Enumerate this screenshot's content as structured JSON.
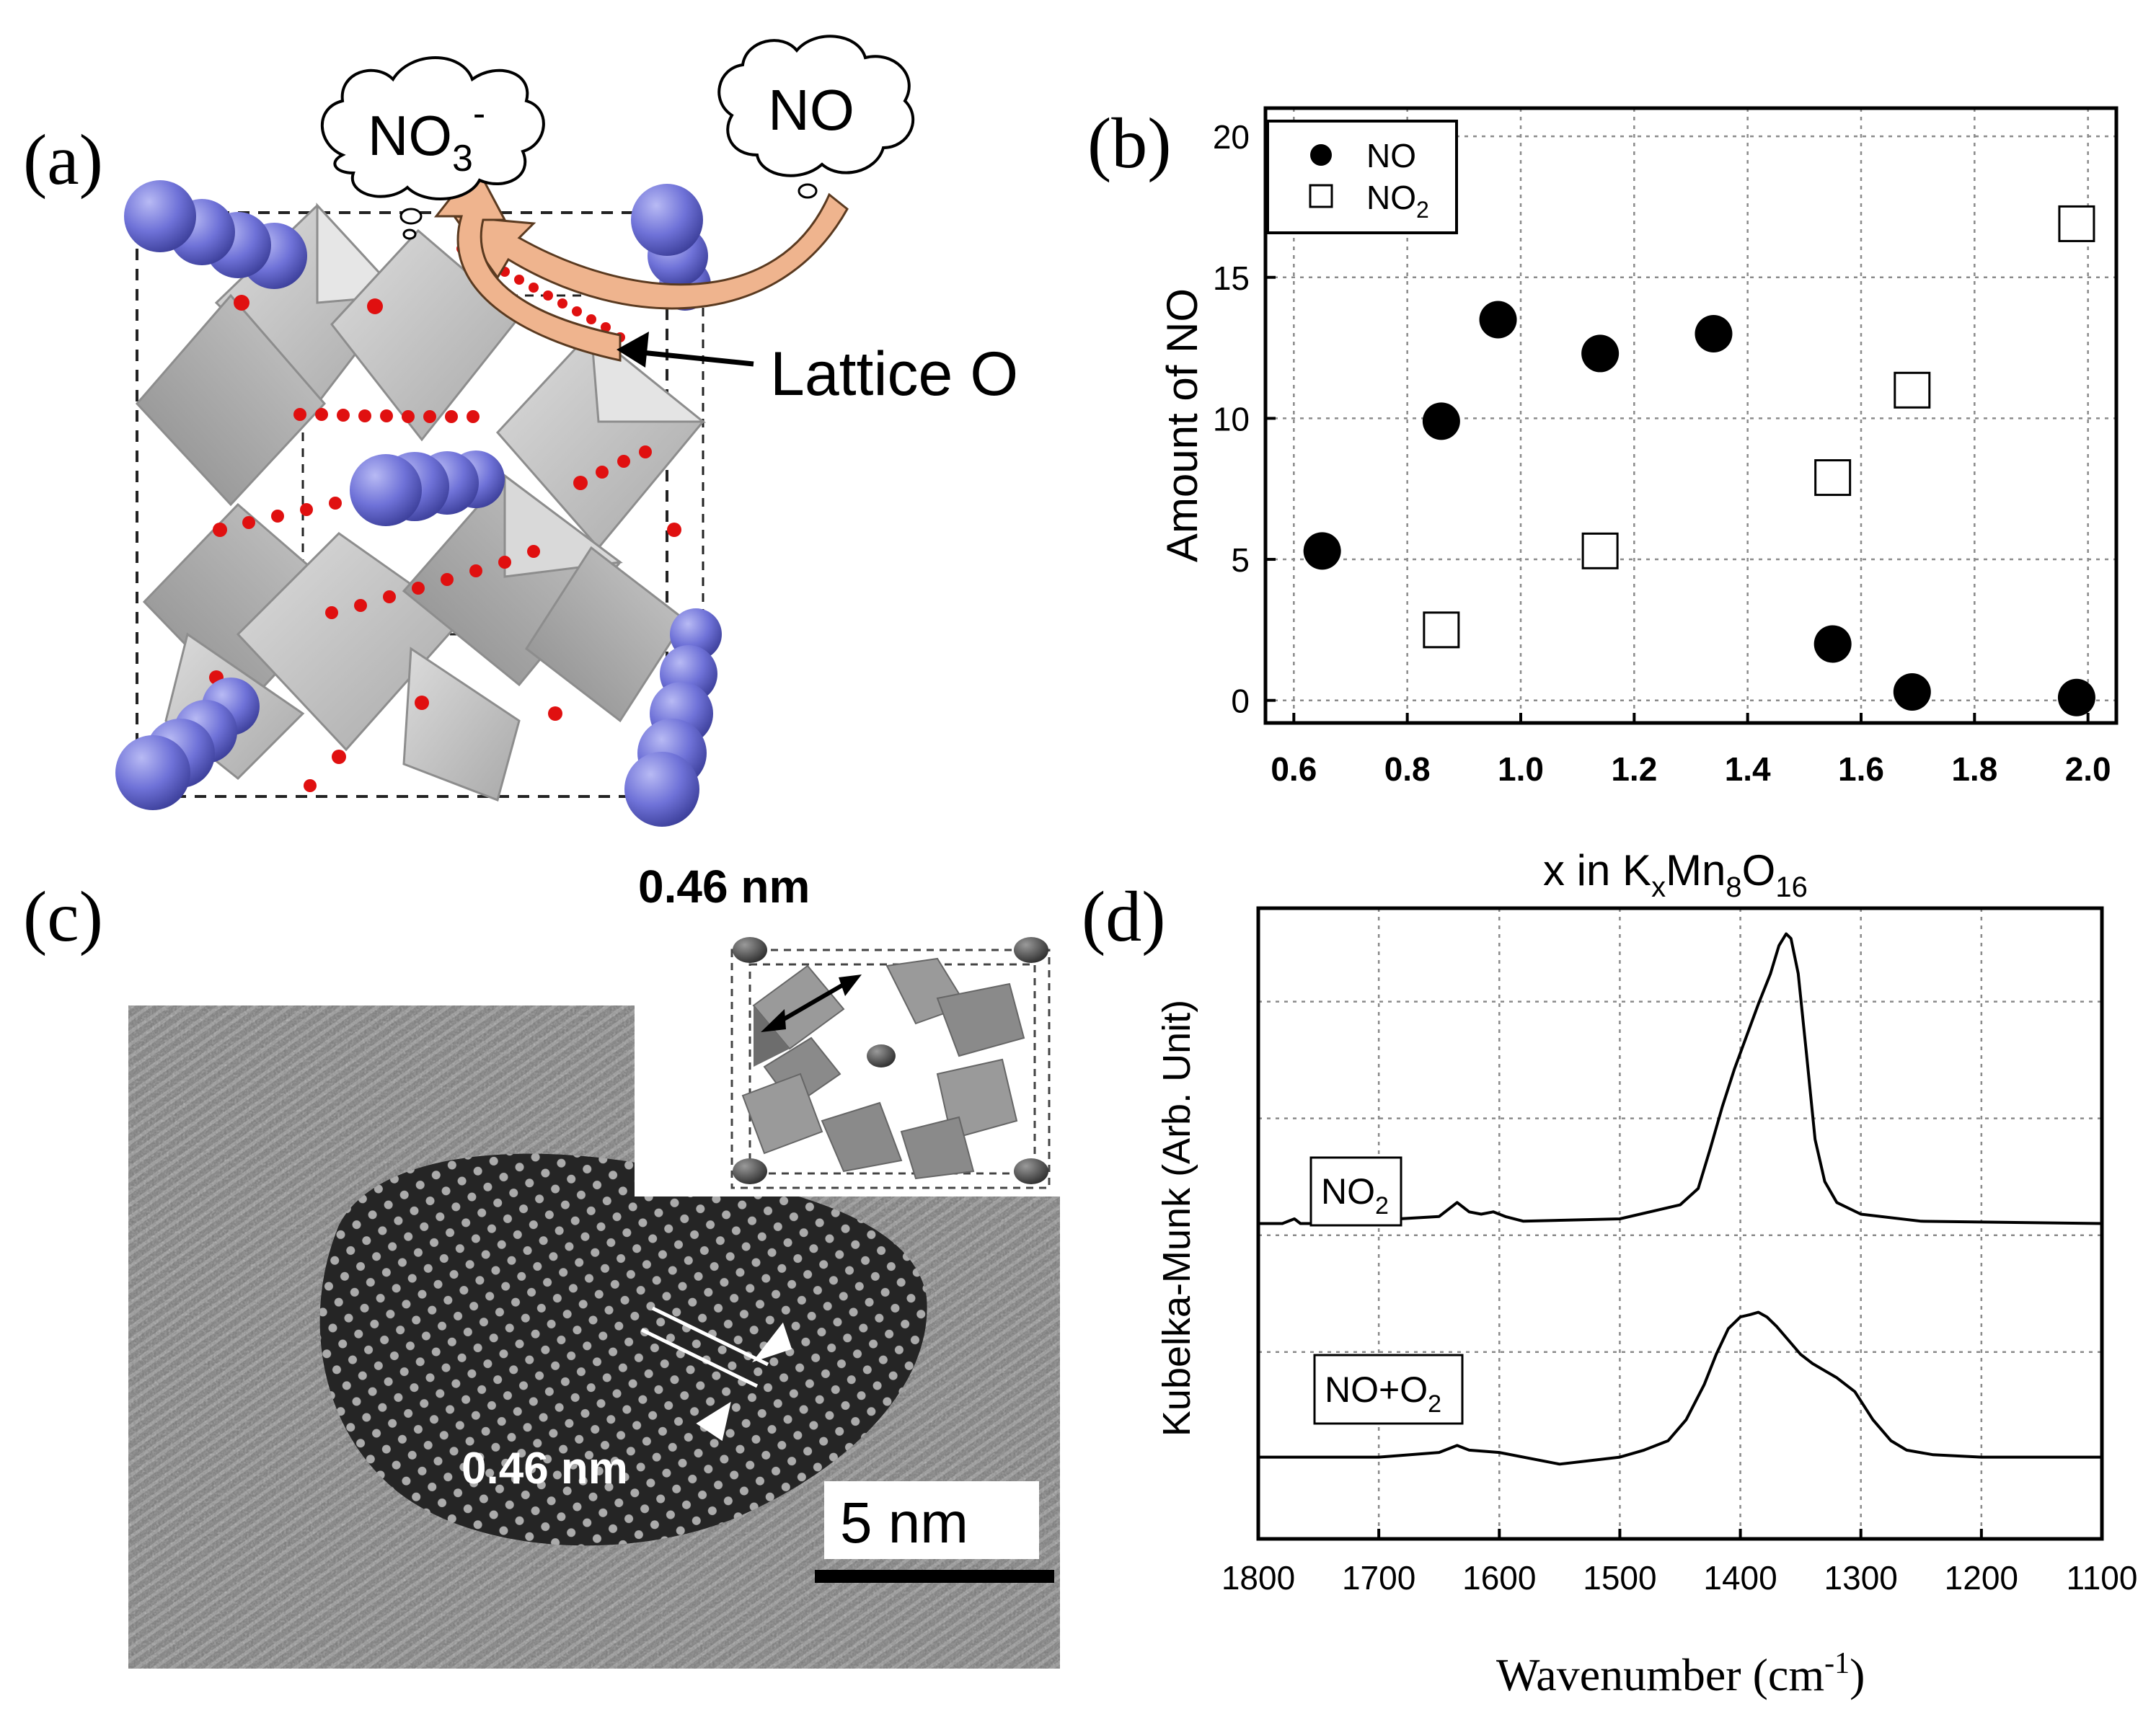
{
  "panels": {
    "a": "(a)",
    "b": "(b)",
    "c": "(c)",
    "d": "(d)"
  },
  "panel_a": {
    "cloud_left": "NO",
    "cloud_left_sub": "3",
    "cloud_left_sup": "-",
    "cloud_right": "NO",
    "annotation": "Lattice O",
    "colors": {
      "tunnel_atom": "#6f72d8",
      "oxygen": "#e01010",
      "octahedra": "#b9b9b9",
      "arrow": "#efb48e"
    }
  },
  "panel_c": {
    "inset_title": "0.46 nm",
    "spacing_label": "0.46 nm",
    "scalebar_label": "5 nm"
  },
  "chart_data": [
    {
      "id": "b",
      "type": "scatter",
      "title": "",
      "xlabel": "x in KxMn8O16",
      "xlabel_parts": {
        "pre": "x in K",
        "sub1": "x",
        "mid": "Mn",
        "sub2": "8",
        "post": "O",
        "sub3": "16"
      },
      "ylabel": "Amount of NO",
      "xlim": [
        0.55,
        2.05
      ],
      "ylim": [
        -0.8,
        21
      ],
      "xticks": [
        "0.6",
        "0.8",
        "1.0",
        "1.2",
        "1.4",
        "1.6",
        "1.8",
        "2.0"
      ],
      "yticks": [
        "0",
        "5",
        "10",
        "15",
        "20"
      ],
      "legend_position": "top-left",
      "series": [
        {
          "name": "NO",
          "label": "NO",
          "marker": "filled-circle",
          "x": [
            0.65,
            0.86,
            0.96,
            1.14,
            1.34,
            1.55,
            1.69,
            1.98
          ],
          "y": [
            5.3,
            9.9,
            13.5,
            12.3,
            13.0,
            2.0,
            0.3,
            0.1
          ]
        },
        {
          "name": "NO2",
          "label": "NO",
          "label_sub": "2",
          "marker": "open-square",
          "x": [
            0.86,
            1.14,
            1.55,
            1.69,
            1.98
          ],
          "y": [
            2.5,
            5.3,
            7.9,
            11.0,
            16.9
          ]
        }
      ]
    },
    {
      "id": "d",
      "type": "line",
      "title": "",
      "xlabel": "Wavenumber (cm-1)",
      "xlabel_parts": {
        "pre": "Wavenumber (cm",
        "sup": "-1",
        "post": ")"
      },
      "ylabel": "Kubelka-Munk (Arb. Unit)",
      "xlim": [
        1800,
        1100
      ],
      "xticks": [
        "1800",
        "1700",
        "1600",
        "1500",
        "1400",
        "1300",
        "1200",
        "1100"
      ],
      "ylim": [
        -0.35,
        2.35
      ],
      "series": [
        {
          "name": "NO2",
          "label": "NO",
          "label_sub": "2",
          "offset": 1.0,
          "x": [
            1800,
            1780,
            1770,
            1765,
            1750,
            1650,
            1635,
            1625,
            1615,
            1605,
            1595,
            1580,
            1500,
            1450,
            1435,
            1425,
            1415,
            1405,
            1395,
            1385,
            1375,
            1368,
            1362,
            1358,
            1352,
            1345,
            1338,
            1330,
            1320,
            1300,
            1250,
            1100
          ],
          "y": [
            0,
            0,
            0.02,
            0,
            0,
            0.03,
            0.09,
            0.05,
            0.04,
            0.05,
            0.03,
            0.01,
            0.02,
            0.08,
            0.15,
            0.32,
            0.5,
            0.66,
            0.8,
            0.94,
            1.07,
            1.19,
            1.24,
            1.22,
            1.07,
            0.72,
            0.36,
            0.18,
            0.09,
            0.04,
            0.01,
            0
          ]
        },
        {
          "name": "NO+O2",
          "label": "NO+O",
          "label_sub": "2",
          "offset": 0.0,
          "x": [
            1800,
            1700,
            1650,
            1635,
            1625,
            1600,
            1550,
            1500,
            1480,
            1460,
            1445,
            1430,
            1420,
            1410,
            1400,
            1392,
            1385,
            1378,
            1370,
            1360,
            1350,
            1340,
            1330,
            1320,
            1305,
            1290,
            1275,
            1262,
            1240,
            1200,
            1100
          ],
          "y": [
            0,
            0,
            0.02,
            0.05,
            0.03,
            0.02,
            -0.03,
            0,
            0.03,
            0.07,
            0.16,
            0.31,
            0.44,
            0.55,
            0.6,
            0.61,
            0.62,
            0.6,
            0.56,
            0.5,
            0.44,
            0.4,
            0.37,
            0.34,
            0.28,
            0.16,
            0.07,
            0.03,
            0.01,
            0,
            0
          ]
        }
      ]
    }
  ]
}
